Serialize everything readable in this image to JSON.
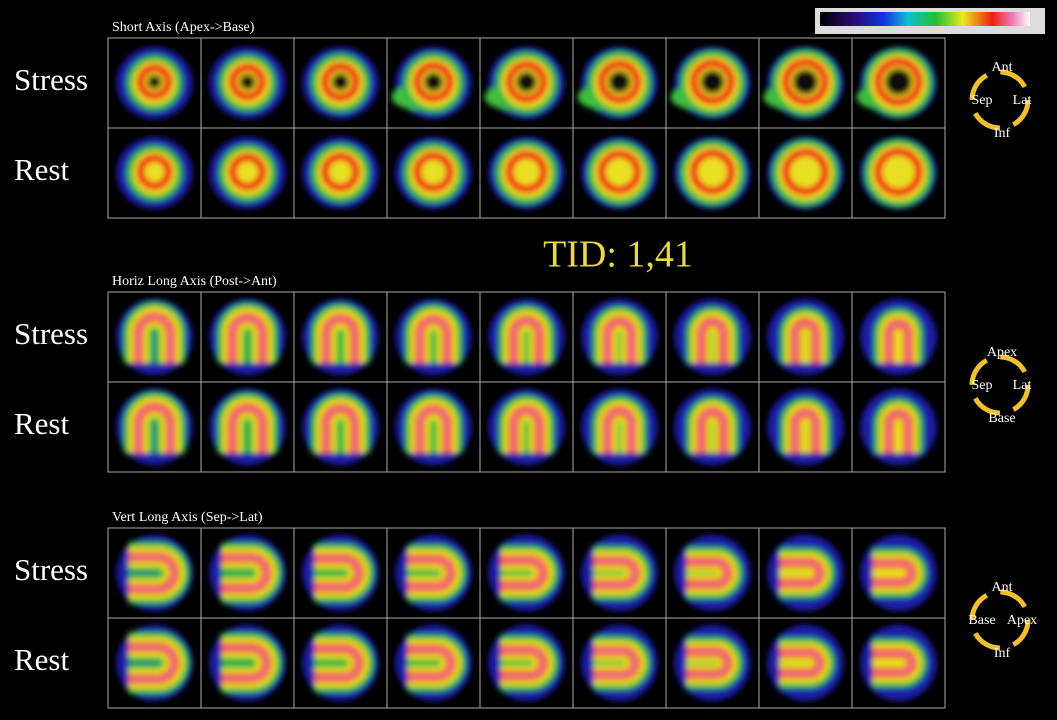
{
  "tid": "TID: 1,41",
  "panels": [
    {
      "title": "Short Axis (Apex->Base)",
      "rows": [
        "Stress",
        "Rest"
      ],
      "orientation": {
        "top": "Ant",
        "left": "Sep",
        "right": "Lat",
        "bottom": "Inf"
      }
    },
    {
      "title": "Horiz Long Axis (Post->Ant)",
      "rows": [
        "Stress",
        "Rest"
      ],
      "orientation": {
        "top": "Apex",
        "left": "Sep",
        "right": "Lat",
        "bottom": "Base"
      }
    },
    {
      "title": "Vert Long Axis (Sep->Lat)",
      "rows": [
        "Stress",
        "Rest"
      ],
      "orientation": {
        "top": "Ant",
        "left": "Base",
        "right": "Apex",
        "bottom": "Inf"
      }
    }
  ]
}
